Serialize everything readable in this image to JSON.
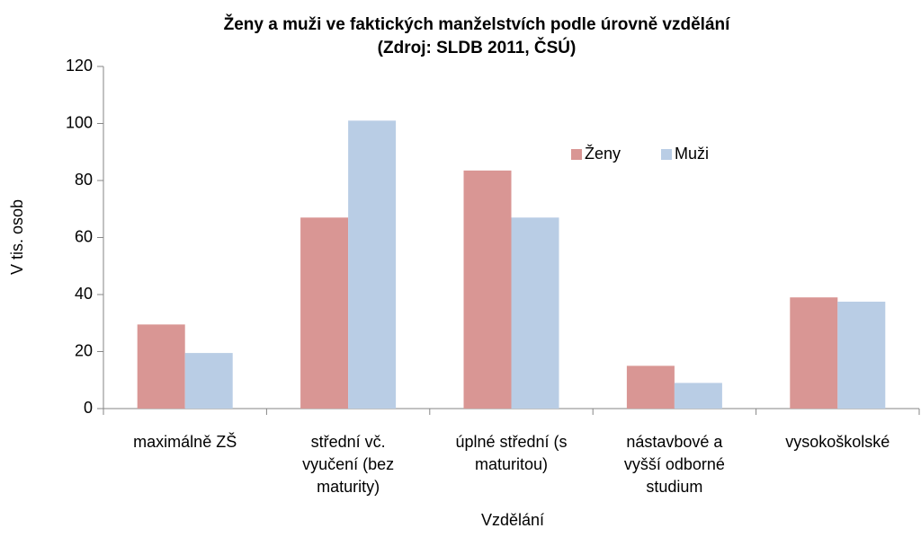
{
  "chart_data": {
    "type": "bar",
    "title": "Ženy a muži ve faktických manželstvích podle úrovně vzdělání",
    "subtitle": "(Zdroj: SLDB 2011, ČSÚ)",
    "x_label": "Vzdělání",
    "y_label": "V tis. osob",
    "categories": [
      "maximálně ZŠ",
      "střední vč. vyučení (bez maturity)",
      "úplné střední (s maturitou)",
      "nástavbové a vyšší odborné studium",
      "vysokoškolské"
    ],
    "series": [
      {
        "name": "Ženy",
        "color": "#d99694",
        "values": [
          29.5,
          67,
          83.5,
          15,
          39
        ]
      },
      {
        "name": "Muži",
        "color": "#b9cde5",
        "values": [
          19.5,
          101,
          67,
          9,
          37.5
        ]
      }
    ],
    "ylim": [
      0,
      120
    ],
    "yticks": [
      0,
      20,
      40,
      60,
      80,
      100,
      120
    ],
    "legend": "top-right"
  }
}
